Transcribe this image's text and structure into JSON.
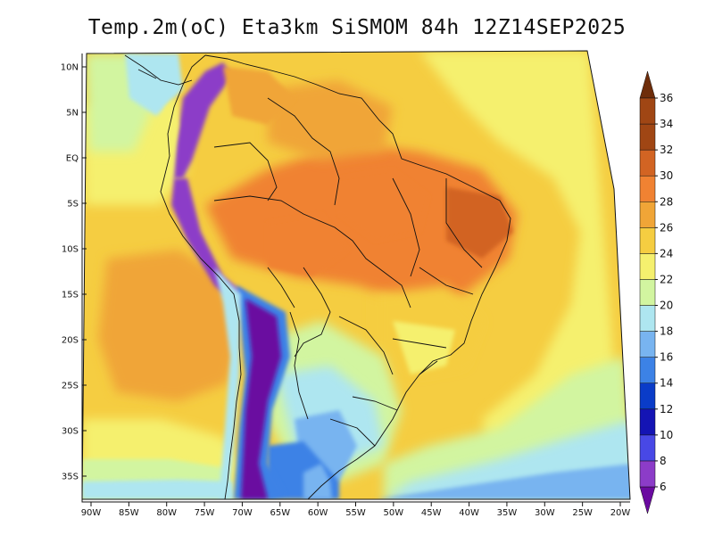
{
  "title": "Temp.2m(oC) Eta3km SiSMOM 84h 12Z14SEP2025",
  "map": {
    "region": "South America",
    "lon_range": [
      -90,
      -20
    ],
    "lat_range": [
      -38,
      12
    ],
    "lat_ticks": [
      {
        "value": 10,
        "label": "10N"
      },
      {
        "value": 5,
        "label": "5N"
      },
      {
        "value": 0,
        "label": "EQ"
      },
      {
        "value": -5,
        "label": "5S"
      },
      {
        "value": -10,
        "label": "10S"
      },
      {
        "value": -15,
        "label": "15S"
      },
      {
        "value": -20,
        "label": "20S"
      },
      {
        "value": -25,
        "label": "25S"
      },
      {
        "value": -30,
        "label": "30S"
      },
      {
        "value": -35,
        "label": "35S"
      }
    ],
    "lon_ticks": [
      {
        "value": -90,
        "label": "90W"
      },
      {
        "value": -85,
        "label": "85W"
      },
      {
        "value": -80,
        "label": "80W"
      },
      {
        "value": -75,
        "label": "75W"
      },
      {
        "value": -70,
        "label": "70W"
      },
      {
        "value": -65,
        "label": "65W"
      },
      {
        "value": -60,
        "label": "60W"
      },
      {
        "value": -55,
        "label": "55W"
      },
      {
        "value": -50,
        "label": "50W"
      },
      {
        "value": -45,
        "label": "45W"
      },
      {
        "value": -40,
        "label": "40W"
      },
      {
        "value": -35,
        "label": "35W"
      },
      {
        "value": -30,
        "label": "30W"
      },
      {
        "value": -25,
        "label": "25W"
      },
      {
        "value": -20,
        "label": "20W"
      }
    ]
  },
  "colorbar": {
    "levels": [
      6,
      8,
      10,
      12,
      14,
      16,
      18,
      20,
      22,
      24,
      26,
      28,
      30,
      32,
      34,
      36
    ],
    "labels": [
      "6",
      "8",
      "10",
      "12",
      "14",
      "16",
      "18",
      "20",
      "22",
      "24",
      "26",
      "28",
      "30",
      "32",
      "34",
      "36"
    ],
    "colors": [
      "#6a0aa0",
      "#8c3cc8",
      "#4848e6",
      "#1414b4",
      "#0a3cc8",
      "#3c82e6",
      "#78b4f0",
      "#aee6f0",
      "#d2f5a0",
      "#f5f06e",
      "#f5cd41",
      "#f0a537",
      "#f08232",
      "#d26423",
      "#a04614",
      "#6e2d0a"
    ],
    "colors_note": "index 0 = below 6 arrow, 15 = above 36 arrow"
  }
}
